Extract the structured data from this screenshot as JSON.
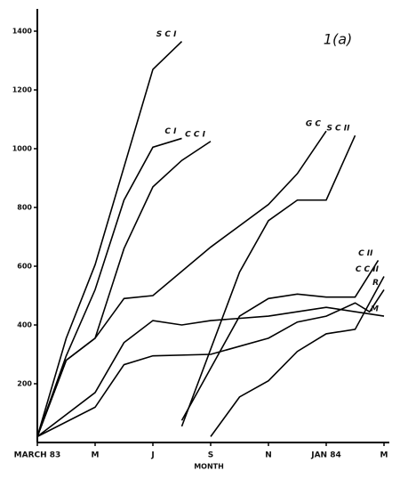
{
  "chart_data": {
    "type": "line",
    "annotation": "1(a)",
    "x_label": "MONTH",
    "xlim": [
      0,
      12
    ],
    "ylim": [
      0,
      1400
    ],
    "xticks": [
      {
        "value": 0,
        "label": "MARCH 83"
      },
      {
        "value": 2,
        "label": "M"
      },
      {
        "value": 4,
        "label": "J"
      },
      {
        "value": 6,
        "label": "S"
      },
      {
        "value": 8,
        "label": "N"
      },
      {
        "value": 10,
        "label": "JAN 84"
      },
      {
        "value": 12,
        "label": "M"
      }
    ],
    "yticks": [
      200,
      400,
      600,
      800,
      1000,
      1200,
      1400
    ],
    "series": [
      {
        "name": "S C I",
        "color": "#000000",
        "x": [
          0,
          1,
          2,
          4,
          5
        ],
        "values": [
          20,
          355,
          605,
          1270,
          1365
        ]
      },
      {
        "name": "C I",
        "color": "#000000",
        "x": [
          0,
          1,
          2,
          3,
          4,
          5
        ],
        "values": [
          20,
          295,
          520,
          825,
          1005,
          1035
        ]
      },
      {
        "name": "C C I",
        "color": "#000000",
        "x": [
          0,
          1,
          2,
          3,
          4,
          5,
          6
        ],
        "values": [
          20,
          280,
          355,
          660,
          870,
          960,
          1025
        ]
      },
      {
        "name": "G C",
        "color": "#000000",
        "x": [
          0,
          1,
          2,
          3,
          4,
          6,
          8,
          9,
          10
        ],
        "values": [
          20,
          280,
          355,
          490,
          500,
          665,
          810,
          915,
          1060
        ]
      },
      {
        "name": "S C II",
        "color": "#000000",
        "x": [
          5,
          7,
          8,
          9,
          10,
          11
        ],
        "values": [
          55,
          580,
          755,
          825,
          825,
          1045
        ]
      },
      {
        "name": "C II",
        "color": "#000000",
        "x": [
          5,
          7,
          8,
          9,
          10,
          11,
          11.8
        ],
        "values": [
          75,
          430,
          490,
          505,
          495,
          495,
          620
        ]
      },
      {
        "name": "R",
        "color": "#000000",
        "x": [
          0,
          2,
          3,
          4,
          6,
          8,
          9,
          10,
          11,
          11.5,
          12
        ],
        "values": [
          20,
          120,
          265,
          295,
          300,
          355,
          410,
          430,
          475,
          445,
          520
        ]
      },
      {
        "name": "C C II",
        "color": "#000000",
        "x": [
          6,
          7,
          8,
          9,
          10,
          11,
          12
        ],
        "values": [
          20,
          155,
          210,
          310,
          370,
          385,
          565
        ]
      },
      {
        "name": "M",
        "color": "#000000",
        "x": [
          0,
          2,
          3,
          4,
          5,
          6,
          8,
          10,
          12
        ],
        "values": [
          20,
          170,
          340,
          415,
          400,
          415,
          430,
          460,
          430
        ]
      }
    ]
  }
}
